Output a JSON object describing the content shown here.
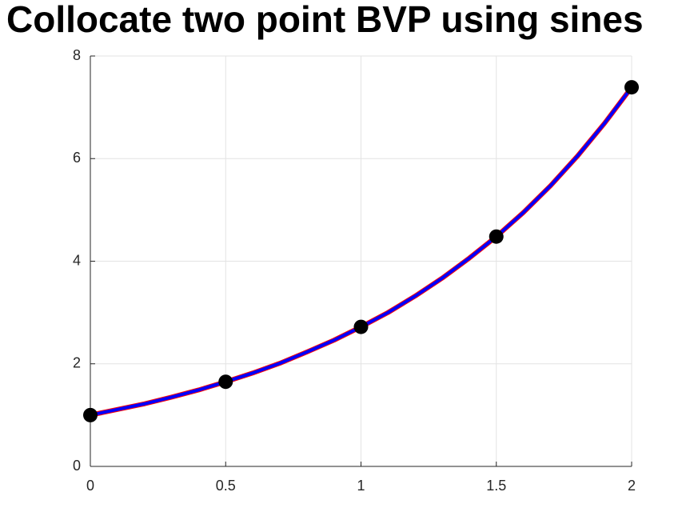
{
  "chart_data": {
    "type": "line",
    "title": "Collocate two point BVP using sines",
    "xlim": [
      0,
      2
    ],
    "xticks": [
      0,
      0.5,
      1,
      1.5,
      2
    ],
    "ylim": [
      0,
      8
    ],
    "yticks": [
      0,
      2,
      4,
      6,
      8
    ],
    "grid": true,
    "series": [
      {
        "color": "#ff0000",
        "style": "line",
        "x": [
          0,
          0.1,
          0.2,
          0.3,
          0.4,
          0.5,
          0.6,
          0.7,
          0.8,
          0.9,
          1,
          1.1,
          1.2,
          1.3,
          1.4,
          1.5,
          1.6,
          1.7,
          1.8,
          1.9,
          2
        ],
        "values": [
          1.0,
          1.11,
          1.22,
          1.35,
          1.49,
          1.65,
          1.82,
          2.01,
          2.23,
          2.46,
          2.72,
          3.0,
          3.32,
          3.67,
          4.06,
          4.48,
          4.95,
          5.47,
          6.05,
          6.69,
          7.39
        ]
      },
      {
        "color": "#0000ff",
        "style": "line",
        "x": [
          0,
          0.1,
          0.2,
          0.3,
          0.4,
          0.5,
          0.6,
          0.7,
          0.8,
          0.9,
          1,
          1.1,
          1.2,
          1.3,
          1.4,
          1.5,
          1.6,
          1.7,
          1.8,
          1.9,
          2
        ],
        "values": [
          1.0,
          1.11,
          1.22,
          1.35,
          1.49,
          1.65,
          1.82,
          2.01,
          2.23,
          2.46,
          2.72,
          3.0,
          3.32,
          3.67,
          4.06,
          4.48,
          4.95,
          5.47,
          6.05,
          6.69,
          7.39
        ]
      },
      {
        "color": "#000000",
        "style": "markers",
        "x": [
          0,
          0.5,
          1,
          1.5,
          2
        ],
        "values": [
          1.0,
          1.65,
          2.72,
          4.48,
          7.39
        ]
      }
    ]
  }
}
